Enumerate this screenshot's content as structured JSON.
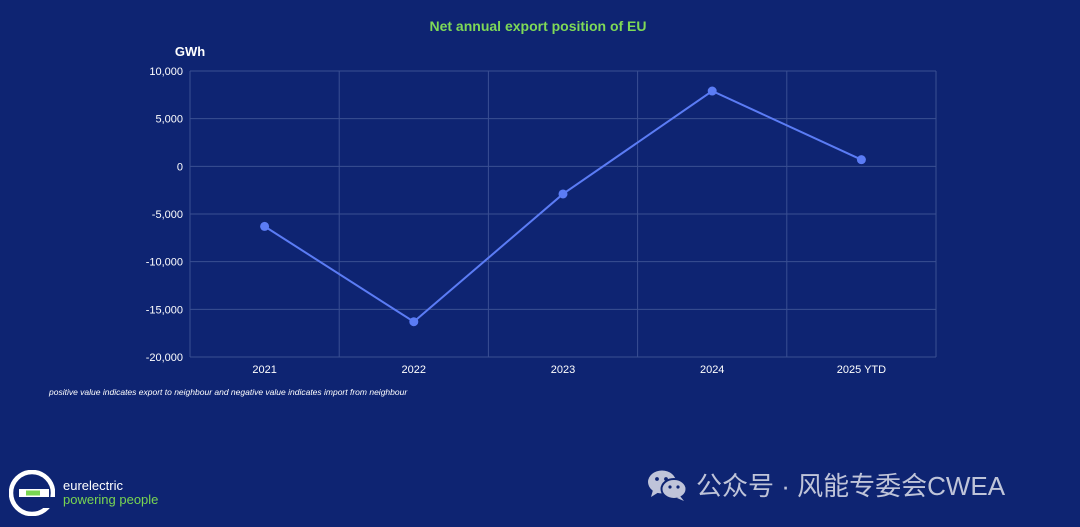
{
  "chart_data": {
    "type": "line",
    "title": "Net annual export position of EU",
    "ylabel": "GWh",
    "xlabel": "",
    "categories": [
      "2021",
      "2022",
      "2023",
      "2024",
      "2025 YTD"
    ],
    "series": [
      {
        "values": [
          -6300,
          -16300,
          -2900,
          7900,
          700
        ]
      }
    ],
    "ylim": [
      -20000,
      10000
    ],
    "yticks": [
      10000,
      5000,
      0,
      -5000,
      -10000,
      -15000,
      -20000
    ],
    "ytick_labels": [
      "10,000",
      "5,000",
      "0",
      "-5,000",
      "-10,000",
      "-15,000",
      "-20,000"
    ],
    "grid": true,
    "colors": {
      "line": "#5b7cf5",
      "title": "#7ed957",
      "grid": "#3a4f93",
      "text": "#ffffff"
    }
  },
  "note": "positive value indicates export to neighbour and negative value indicates import from neighbour",
  "logo": {
    "name": "eurelectric",
    "tagline": "powering people",
    "icon": "eurelectric-e-icon"
  },
  "watermark": {
    "icon": "wechat-icon",
    "text": "公众号 · 风能专委会CWEA"
  }
}
